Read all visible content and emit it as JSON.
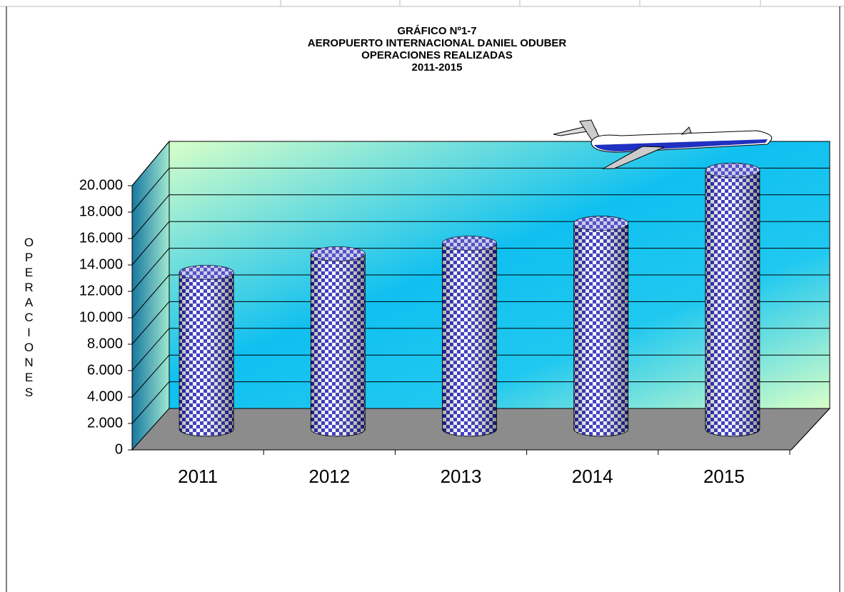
{
  "chart_data": {
    "type": "bar",
    "title": [
      "GRÁFICO Nº1-7",
      "AEROPUERTO  INTERNACIONAL  DANIEL  ODUBER",
      "OPERACIONES  REALIZADAS",
      "2011-2015"
    ],
    "y_label": "OPERACIONES",
    "categories": [
      "2011",
      "2012",
      "2013",
      "2014",
      "2015"
    ],
    "values": [
      11800,
      13200,
      14000,
      15500,
      19500
    ],
    "ylim": [
      0,
      20000
    ],
    "yticks": [
      0,
      {
        "value": 2000,
        "label": "2.000"
      },
      {
        "value": 4000,
        "label": "4.000"
      },
      {
        "value": 6000,
        "label": "6.000"
      },
      {
        "value": 8000,
        "label": "8.000"
      },
      {
        "value": 10000,
        "label": "10.000"
      },
      {
        "value": 12000,
        "label": "12.000"
      },
      {
        "value": 14000,
        "label": "14.000"
      },
      {
        "value": 16000,
        "label": "16.000"
      },
      {
        "value": 18000,
        "label": "18.000"
      },
      {
        "value": 20000,
        "label": "20.000"
      }
    ],
    "grid": true,
    "color": "#2020c0"
  }
}
